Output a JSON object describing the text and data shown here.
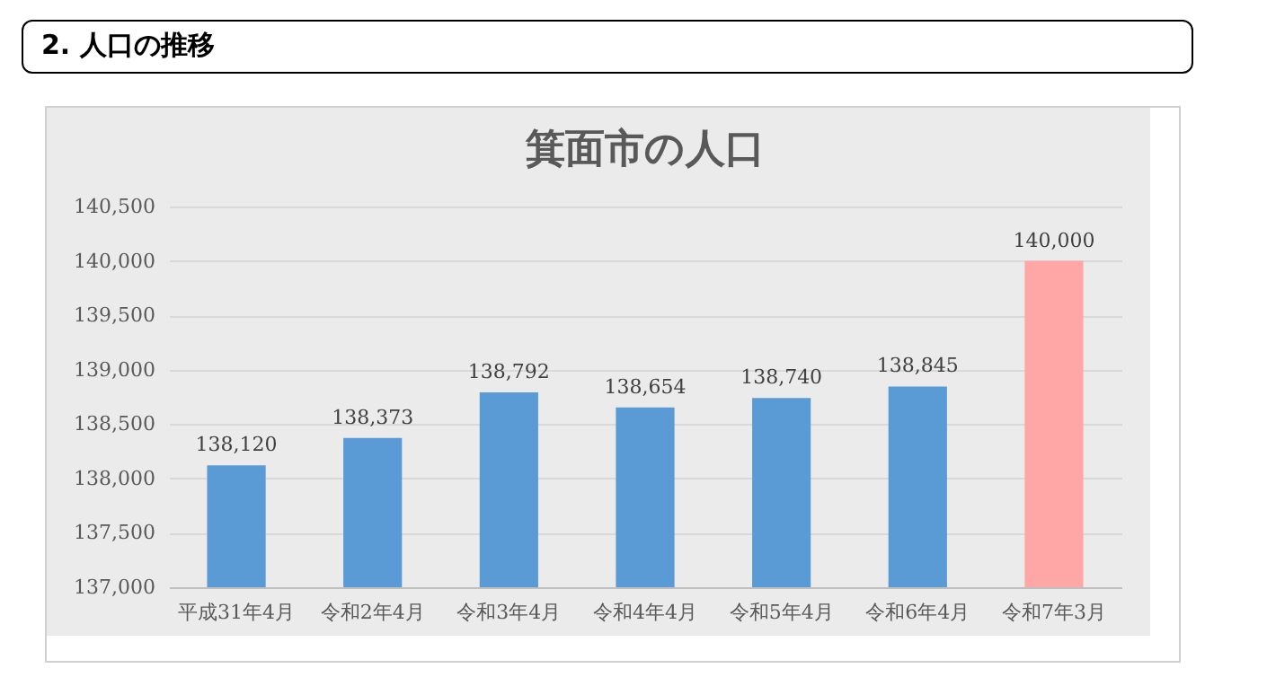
{
  "chart_data": {
    "type": "bar",
    "title": "箕面市の人口",
    "annotations": [
      "2. 人口の推移"
    ],
    "categories": [
      "平成31年4月",
      "令和2年4月",
      "令和3年4月",
      "令和4年4月",
      "令和5年4月",
      "令和6年4月",
      "令和7年3月"
    ],
    "values": [
      138120,
      138373,
      138792,
      138654,
      138740,
      138845,
      140000
    ],
    "value_labels": [
      "138,120",
      "138,373",
      "138,792",
      "138,654",
      "138,740",
      "138,845",
      "140,000"
    ],
    "colors": [
      "#5b9bd5",
      "#5b9bd5",
      "#5b9bd5",
      "#5b9bd5",
      "#5b9bd5",
      "#5b9bd5",
      "#ffa6a6"
    ],
    "ylim": [
      137000,
      140500
    ],
    "yticks": [
      {
        "value": 137000,
        "label": "137,000"
      },
      {
        "value": 137500,
        "label": "137,500"
      },
      {
        "value": 138000,
        "label": "138,000"
      },
      {
        "value": 138500,
        "label": "138,500"
      },
      {
        "value": 139000,
        "label": "139,000"
      },
      {
        "value": 139500,
        "label": "139,500"
      },
      {
        "value": 140000,
        "label": "140,000"
      },
      {
        "value": 140500,
        "label": "140,500"
      }
    ],
    "grid": "y",
    "legend": false
  }
}
